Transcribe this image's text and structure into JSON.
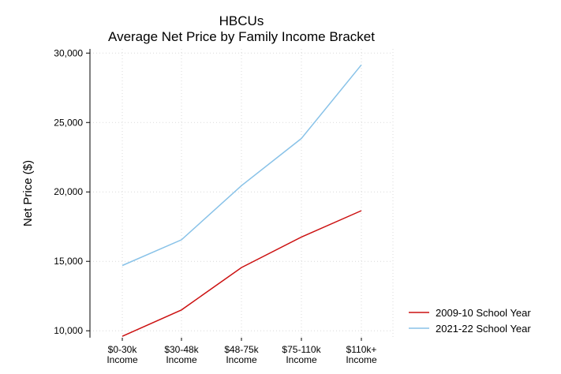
{
  "chart_data": {
    "type": "line",
    "title": "HBCUs",
    "subtitle": "Average Net Price by Family Income Bracket",
    "xlabel": "",
    "ylabel": "Net Price ($)",
    "categories": [
      [
        "$0-30k",
        "Income"
      ],
      [
        "$30-48k",
        "Income"
      ],
      [
        "$48-75k",
        "Income"
      ],
      [
        "$75-110k",
        "Income"
      ],
      [
        "$110k+",
        "Income"
      ]
    ],
    "ylim": [
      9500,
      30300
    ],
    "yticks": [
      10000,
      15000,
      20000,
      25000,
      30000
    ],
    "ytick_labels": [
      "10,000",
      "15,000",
      "20,000",
      "25,000",
      "30,000"
    ],
    "grid": true,
    "legend_position": "bottom-right",
    "series": [
      {
        "name": "2009-10 School Year",
        "color": "#cc1111",
        "values": [
          9600,
          11500,
          14550,
          16750,
          18650
        ]
      },
      {
        "name": "2021-22 School Year",
        "color": "#88c2e8",
        "values": [
          14700,
          16550,
          20450,
          23850,
          29150
        ]
      }
    ]
  }
}
